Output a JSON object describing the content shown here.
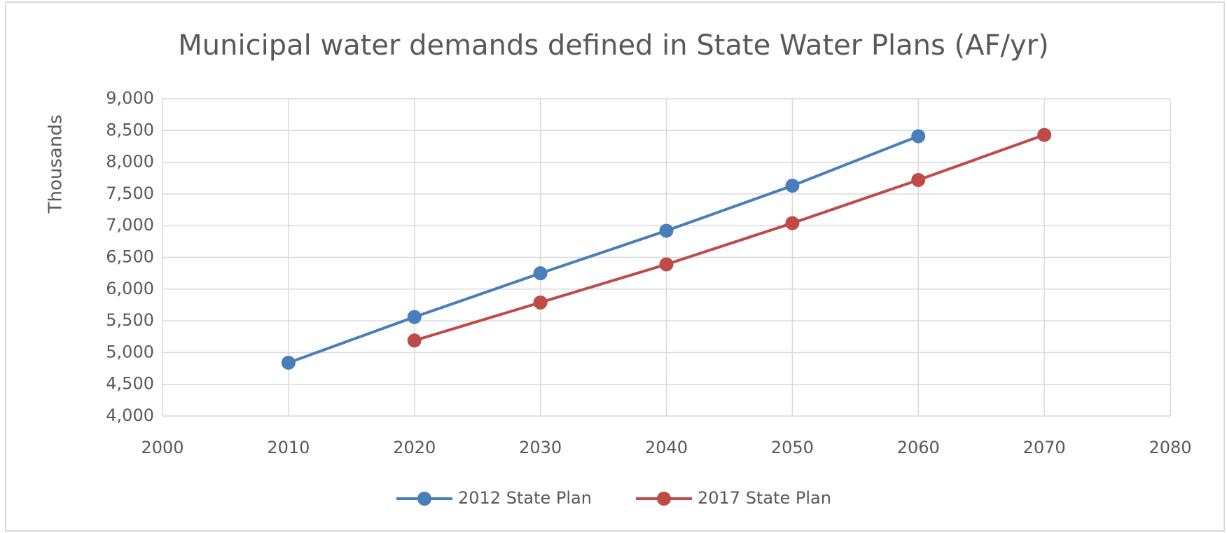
{
  "chart_data": {
    "type": "line",
    "title": "Municipal water demands defined in State Water Plans (AF/yr)",
    "y_label": "Thousands",
    "xlim": [
      2000,
      2080
    ],
    "xticks": [
      2000,
      2010,
      2020,
      2030,
      2040,
      2050,
      2060,
      2070,
      2080
    ],
    "ylim": [
      4000,
      9000
    ],
    "yticks": [
      {
        "value": 4000,
        "label": "4,000"
      },
      {
        "value": 4500,
        "label": "4,500"
      },
      {
        "value": 5000,
        "label": "5,000"
      },
      {
        "value": 5500,
        "label": "5,500"
      },
      {
        "value": 6000,
        "label": "6,000"
      },
      {
        "value": 6500,
        "label": "6,500"
      },
      {
        "value": 7000,
        "label": "7,000"
      },
      {
        "value": 7500,
        "label": "7,500"
      },
      {
        "value": 8000,
        "label": "8,000"
      },
      {
        "value": 8500,
        "label": "8,500"
      },
      {
        "value": 9000,
        "label": "9,000"
      }
    ],
    "grid": true,
    "legend": "bottom",
    "series": [
      {
        "name": "2012 State Plan",
        "color": "#4a7ebb",
        "x": [
          2010,
          2020,
          2030,
          2040,
          2050,
          2060
        ],
        "values": [
          4840,
          5560,
          6250,
          6920,
          7630,
          8410
        ]
      },
      {
        "name": "2017 State Plan",
        "color": "#be4b48",
        "x": [
          2020,
          2030,
          2040,
          2050,
          2060,
          2070
        ],
        "values": [
          5190,
          5790,
          6390,
          7040,
          7720,
          8430
        ]
      }
    ]
  }
}
